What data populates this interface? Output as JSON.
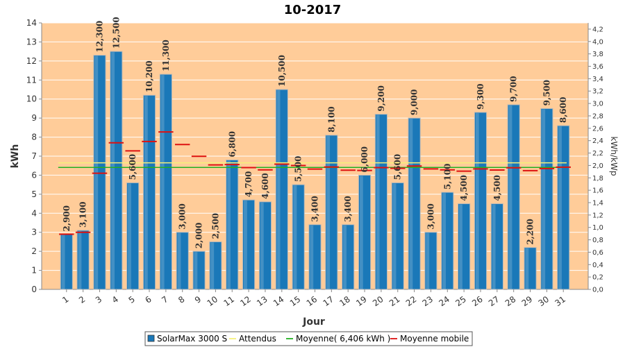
{
  "chart_data": {
    "type": "bar",
    "title": "10-2017",
    "xlabel": "Jour",
    "ylabel": "kWh",
    "y2label": "kWh/kWp",
    "ylim": [
      0,
      14
    ],
    "y2lim": [
      0,
      4.3
    ],
    "yticks": [
      "0",
      "1",
      "2",
      "3",
      "4",
      "5",
      "6",
      "7",
      "8",
      "9",
      "10",
      "11",
      "12",
      "13",
      "14"
    ],
    "y2ticks": [
      "0,0",
      "0,2",
      "0,4",
      "0,6",
      "0,8",
      "1,0",
      "1,2",
      "1,4",
      "1,6",
      "1,8",
      "2,0",
      "2,2",
      "2,4",
      "2,6",
      "2,8",
      "3,0",
      "3,2",
      "3,4",
      "3,6",
      "3,8",
      "4,0",
      "4,2"
    ],
    "categories": [
      "1",
      "2",
      "3",
      "4",
      "5",
      "6",
      "7",
      "8",
      "9",
      "10",
      "11",
      "12",
      "13",
      "14",
      "15",
      "16",
      "17",
      "18",
      "19",
      "20",
      "21",
      "22",
      "23",
      "24",
      "25",
      "26",
      "27",
      "28",
      "29",
      "30",
      "31"
    ],
    "bar_labels": [
      "2,900",
      "3,100",
      "12,300",
      "12,500",
      "5,600",
      "10,200",
      "11,300",
      "3,000",
      "2,000",
      "2,500",
      "6,800",
      "4,700",
      "4,600",
      "10,500",
      "5,500",
      "3,400",
      "8,100",
      "3,400",
      "6,000",
      "9,200",
      "5,600",
      "9,000",
      "3,000",
      "5,100",
      "4,500",
      "9,300",
      "4,500",
      "9,700",
      "2,200",
      "9,500",
      "8,600"
    ],
    "series": [
      {
        "name": "SolarMax 3000 S",
        "kind": "bar",
        "color": "#1a78b8",
        "values": [
          2.9,
          3.1,
          12.3,
          12.5,
          5.6,
          10.2,
          11.3,
          3.0,
          2.0,
          2.5,
          6.8,
          4.7,
          4.6,
          10.5,
          5.5,
          3.4,
          8.1,
          3.4,
          6.0,
          9.2,
          5.6,
          9.0,
          3.0,
          5.1,
          4.5,
          9.3,
          4.5,
          9.7,
          2.2,
          9.5,
          8.6
        ]
      },
      {
        "name": "Attendus",
        "kind": "line",
        "color": "#f5f07a",
        "value": 6.65
      },
      {
        "name": "Moyenne( 6,406 kWh )",
        "kind": "line",
        "color": "#22b022",
        "value": 6.406
      },
      {
        "name": "Moyenne mobile",
        "kind": "step",
        "color": "#dd1111",
        "values": [
          2.9,
          3.0,
          6.1,
          7.7,
          7.28,
          7.77,
          8.27,
          7.61,
          6.99,
          6.54,
          6.56,
          6.4,
          6.28,
          6.58,
          6.51,
          6.32,
          6.43,
          6.26,
          6.25,
          6.4,
          6.36,
          6.48,
          6.33,
          6.28,
          6.21,
          6.33,
          6.27,
          6.39,
          6.24,
          6.35,
          6.42
        ]
      }
    ],
    "legend": {
      "position": "bottom",
      "items": [
        {
          "label": "SolarMax 3000 S",
          "symbol": "box",
          "color": "#1a78b8"
        },
        {
          "label": "Attendus",
          "symbol": "line",
          "color": "#f5f07a"
        },
        {
          "label": "Moyenne( 6,406 kWh )",
          "symbol": "line",
          "color": "#22b022"
        },
        {
          "label": "Moyenne mobile",
          "symbol": "line",
          "color": "#dd1111"
        }
      ]
    },
    "colors": {
      "plot_background": "#ffcc99",
      "grid": "#ffffff",
      "bar": "#1a78b8",
      "bar_border": "#b8b8b8"
    }
  }
}
